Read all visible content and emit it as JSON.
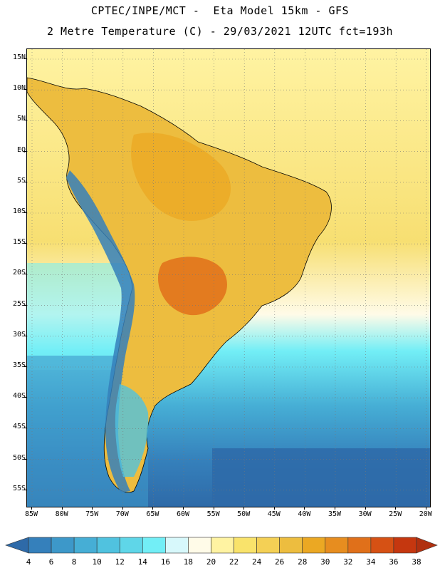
{
  "header": {
    "line1": "CPTEC/INPE/MCT -  Eta Model 15km - GFS",
    "line2": "2 Metre Temperature (C) - 29/03/2021 12UTC fct=193h"
  },
  "map": {
    "lat_labels": [
      "15N",
      "10N",
      "5N",
      "EQ",
      "5S",
      "10S",
      "15S",
      "20S",
      "25S",
      "30S",
      "35S",
      "40S",
      "45S",
      "50S",
      "55S"
    ],
    "lon_labels": [
      "85W",
      "80W",
      "75W",
      "70W",
      "65W",
      "60W",
      "55W",
      "50W",
      "45W",
      "40W",
      "35W",
      "30W",
      "25W",
      "20W"
    ]
  },
  "colorbar": {
    "values": [
      "4",
      "6",
      "8",
      "10",
      "12",
      "14",
      "16",
      "18",
      "20",
      "22",
      "24",
      "26",
      "28",
      "30",
      "32",
      "34",
      "36",
      "38"
    ],
    "colors": [
      "#2e6aa8",
      "#3580bb",
      "#3d98c9",
      "#46aed5",
      "#50c2df",
      "#5fd6e8",
      "#72eef6",
      "#d7f8fb",
      "#fffbe8",
      "#fff3a2",
      "#f9e36b",
      "#f4d055",
      "#edbd3f",
      "#eba823",
      "#e78d1f",
      "#e0701a",
      "#d65114",
      "#c5370f",
      "#b0300f"
    ]
  },
  "colors": {
    "ocean_cold": "#2e5fa3",
    "ocean_mid": "#46aed5",
    "warm_land": "#edbd3f",
    "hot_land": "#e0701a"
  }
}
